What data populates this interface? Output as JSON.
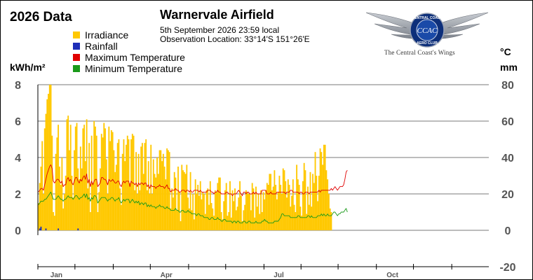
{
  "header": {
    "headline": "2026 Data",
    "station": "Warnervale Airfield",
    "obs_time": "5th September 2026  23:59 local",
    "obs_location": "Observation Location:   33°14'S 151°26'E"
  },
  "logo": {
    "ring_text_top": "CENTRAL COAST",
    "ring_text_bottom": "AERO CLUB",
    "monogram": "CCAC",
    "caption": "The Central Coast's Wings"
  },
  "units": {
    "left": "kWh/m²",
    "right_temp": "°C",
    "right_rain": "mm"
  },
  "colors": {
    "irradiance": "#FFC800",
    "rainfall": "#1E2EB8",
    "max_temp": "#E00000",
    "min_temp": "#1A9A1A",
    "grid": "#7a7a7a"
  },
  "legend": [
    {
      "label": "Irradiance",
      "color": "#FFC800"
    },
    {
      "label": "Rainfall",
      "color": "#1E2EB8"
    },
    {
      "label": "Maximum Temperature",
      "color": "#E00000"
    },
    {
      "label": "Minimum Temperature",
      "color": "#1A9A1A"
    }
  ],
  "chart_data": {
    "type": "bar",
    "left_axis": {
      "label": "kWh/m²",
      "ticks": [
        0,
        2,
        4,
        6,
        8
      ],
      "range": [
        0,
        8
      ]
    },
    "right_axis": {
      "labels": [
        "°C",
        "mm"
      ],
      "ticks": [
        -20,
        0,
        20,
        40,
        60,
        80
      ],
      "range": [
        -20,
        80
      ]
    },
    "x_axis": {
      "domain_days": [
        1,
        365
      ],
      "month_labels": [
        {
          "label": "Jan",
          "day": 16
        },
        {
          "label": "Apr",
          "day": 105
        },
        {
          "label": "Jul",
          "day": 196
        },
        {
          "label": "Oct",
          "day": 288
        }
      ]
    },
    "grid": true,
    "series": [
      {
        "name": "Irradiance",
        "axis": "left",
        "kind": "bar",
        "start_day": 1,
        "values": [
          1.5,
          2.6,
          3.5,
          4.9,
          2.0,
          5.6,
          6.4,
          7.2,
          7.5,
          8.0,
          8.0,
          5.2,
          1.0,
          0.8,
          4.2,
          5.1,
          5.8,
          3.5,
          2.5,
          4.0,
          1.2,
          2.0,
          3.0,
          6.1,
          6.3,
          4.4,
          5.8,
          3.0,
          1.8,
          4.4,
          5.7,
          5.9,
          3.4,
          2.8,
          4.6,
          3.4,
          5.6,
          5.8,
          3.8,
          6.1,
          2.3,
          4.8,
          1.0,
          5.2,
          2.6,
          6.0,
          5.7,
          5.2,
          1.0,
          2.1,
          3.4,
          5.3,
          5.1,
          5.9,
          5.6,
          3.9,
          2.0,
          5.7,
          4.9,
          5.5,
          5.4,
          4.4,
          3.2,
          3.6,
          4.8,
          5.0,
          2.3,
          1.4,
          4.2,
          5.0,
          3.8,
          4.7,
          5.2,
          5.0,
          2.6,
          5.0,
          5.3,
          5.2,
          2.2,
          4.3,
          2.0,
          4.2,
          2.2,
          4.6,
          4.8,
          3.1,
          4.8,
          5.0,
          2.2,
          3.8,
          2.0,
          4.7,
          2.0,
          3.9,
          3.1,
          2.9,
          4.0,
          3.1,
          4.4,
          4.4,
          3.8,
          4.2,
          3.5,
          2.8,
          4.5,
          4.4,
          4.3,
          1.2,
          2.3,
          1.8,
          3.2,
          2.9,
          1.1,
          3.5,
          2.1,
          0.5,
          3.6,
          3.3,
          3.2,
          3.1,
          3.6,
          1.8,
          1.2,
          3.2,
          1.1,
          2.0,
          0.6,
          2.8,
          2.0,
          2.5,
          1.9,
          2.7,
          1.7,
          2.1,
          2.0,
          0.9,
          2.2,
          2.3,
          1.4,
          2.7,
          1.5,
          1.2,
          0.8,
          2.2,
          2.1,
          2.6,
          2.9,
          2.9,
          1.0,
          0.6,
          1.6,
          2.2,
          2.6,
          0.8,
          1.0,
          2.7,
          0.7,
          2.2,
          1.6,
          2.3,
          1.1,
          1.3,
          1.8,
          2.7,
          1.9,
          0.5,
          1.1,
          1.4,
          2.2,
          2.1,
          2.0,
          2.0,
          1.1,
          2.6,
          2.3,
          0.7,
          2.4,
          1.3,
          2.0,
          0.9,
          2.2,
          1.0,
          2.1,
          1.7,
          2.2,
          2.6,
          2.5,
          3.1,
          3.1,
          2.2,
          2.4,
          3.3,
          2.5,
          1.7,
          2.1,
          3.0,
          2.5,
          2.0,
          3.4,
          3.3,
          2.7,
          1.8,
          2.8,
          2.5,
          1.3,
          1.9,
          2.8,
          1.4,
          1.0,
          3.6,
          2.8,
          2.5,
          1.3,
          0.8,
          2.7,
          3.7,
          3.3,
          0.9,
          2.4,
          1.4,
          3.2,
          1.3,
          3.1,
          2.6,
          4.3,
          3.0,
          1.6,
          3.0,
          4.5,
          4.3,
          3.6,
          4.7,
          4.7,
          3.3,
          2.8,
          2.0,
          1.2,
          1.0
        ]
      },
      {
        "name": "Rainfall",
        "axis": "right",
        "kind": "bar",
        "start_day": 1,
        "values": [
          0,
          1,
          2,
          0,
          0,
          0,
          1,
          0,
          0,
          0,
          0,
          0,
          0,
          0,
          0,
          0,
          1,
          0,
          0,
          0,
          0,
          0,
          0,
          0,
          0,
          0,
          0,
          0,
          0,
          0,
          0,
          0,
          1,
          0,
          0,
          0,
          0,
          0,
          0,
          0,
          0,
          0,
          0,
          0,
          0,
          0,
          0,
          0,
          0,
          0,
          0,
          0,
          0,
          0,
          0,
          0,
          0,
          0,
          0,
          0,
          0,
          0,
          0,
          0,
          0,
          0,
          0,
          0,
          0,
          0,
          0,
          0,
          0,
          0,
          0,
          0,
          0,
          0,
          0,
          0,
          0,
          0,
          0,
          0,
          0,
          0,
          0,
          0,
          0,
          0,
          0,
          0,
          0,
          0,
          0,
          0,
          0,
          0,
          0,
          0,
          0,
          0,
          0,
          0,
          0,
          0,
          0,
          0,
          0,
          0,
          0,
          0,
          0,
          0,
          0,
          0,
          0,
          0,
          0,
          0,
          0,
          0,
          0,
          0,
          0,
          0,
          0,
          0,
          0,
          0,
          0,
          0,
          0,
          0,
          0,
          0,
          0,
          0,
          0,
          0,
          0,
          0,
          0,
          0,
          0,
          0,
          0,
          0,
          0,
          0,
          0,
          0,
          0,
          0,
          0,
          0,
          0,
          0,
          0,
          0,
          0,
          0,
          0,
          0,
          0,
          0,
          0,
          0,
          0,
          0,
          0,
          0,
          0,
          0,
          0,
          0,
          0,
          0,
          0,
          0,
          0,
          0,
          0,
          0,
          0,
          0,
          0,
          0,
          0,
          0,
          0,
          0,
          0,
          0,
          0,
          0,
          0,
          0,
          0,
          0,
          0,
          0,
          0,
          0,
          0,
          0,
          0,
          0,
          0,
          0,
          0,
          0,
          0,
          0,
          0,
          0,
          0,
          0,
          0,
          0,
          0,
          0,
          0,
          0,
          0,
          0,
          0,
          0,
          0,
          0,
          0,
          0,
          0,
          0,
          0,
          0,
          0,
          0,
          0,
          0,
          0,
          0,
          0,
          0,
          0,
          0,
          0,
          0,
          0,
          0,
          0,
          0,
          0,
          0,
          0,
          0,
          0,
          0,
          0,
          0
        ]
      },
      {
        "name": "Maximum Temperature",
        "axis": "right",
        "kind": "line",
        "start_day": 1,
        "values": [
          21,
          22,
          23,
          23,
          22,
          25,
          28,
          31,
          33,
          35,
          36,
          34,
          27,
          26,
          27,
          28,
          28,
          27,
          26,
          27,
          24,
          25,
          25,
          28,
          29,
          27,
          28,
          26,
          25,
          27,
          29,
          29,
          27,
          26,
          28,
          27,
          29,
          30,
          28,
          31,
          26,
          28,
          24,
          27,
          25,
          27,
          28,
          28,
          24,
          25,
          26,
          29,
          29,
          28,
          28,
          27,
          25,
          28,
          27,
          27,
          28,
          27,
          26,
          26,
          27,
          27,
          25,
          24,
          26,
          27,
          26,
          27,
          27,
          27,
          24,
          27,
          26,
          26,
          25,
          26,
          24,
          26,
          25,
          26,
          26,
          25,
          26,
          26,
          24,
          25,
          23,
          25,
          24,
          24,
          24,
          23,
          24,
          24,
          25,
          24,
          24,
          24,
          23,
          24,
          25,
          23,
          23,
          21,
          22,
          22,
          22,
          23,
          22,
          22,
          21,
          21,
          22,
          22,
          22,
          21,
          22,
          22,
          21,
          22,
          21,
          21,
          22,
          22,
          22,
          22,
          21,
          22,
          21,
          21,
          21,
          21,
          21,
          22,
          22,
          22,
          21,
          21,
          20,
          21,
          21,
          22,
          21,
          21,
          20,
          20,
          20,
          20,
          21,
          21,
          20,
          20,
          20,
          19,
          20,
          20,
          20,
          21,
          22,
          21,
          20,
          19,
          21,
          21,
          20,
          21,
          21,
          20,
          20,
          20,
          21,
          20,
          21,
          20,
          20,
          20,
          20,
          22,
          22,
          22,
          22,
          20,
          20,
          20,
          21,
          20,
          20,
          20,
          20,
          21,
          21,
          21,
          21,
          21,
          21,
          21,
          20,
          21,
          21,
          21,
          22,
          22,
          21,
          21,
          21,
          21,
          21,
          20,
          21,
          21,
          20,
          20,
          21,
          21,
          21,
          20,
          21,
          21,
          21,
          21,
          21,
          21,
          21,
          22,
          21,
          22,
          22,
          22,
          22,
          22,
          22,
          22,
          22,
          23,
          22,
          23,
          24,
          23,
          22,
          23,
          24,
          24,
          24,
          25,
          28,
          32,
          33
        ]
      },
      {
        "name": "Minimum Temperature",
        "axis": "right",
        "kind": "line",
        "start_day": 1,
        "values": [
          14,
          15,
          16,
          16,
          16,
          17,
          17,
          18,
          19,
          20,
          21,
          19,
          17,
          17,
          17,
          18,
          19,
          18,
          17,
          17,
          16,
          17,
          17,
          18,
          19,
          18,
          18,
          18,
          17,
          18,
          19,
          19,
          18,
          17,
          18,
          18,
          19,
          20,
          18,
          20,
          17,
          18,
          16,
          18,
          17,
          19,
          19,
          18,
          15,
          16,
          17,
          18,
          18,
          18,
          18,
          17,
          16,
          17,
          17,
          18,
          18,
          17,
          16,
          17,
          17,
          18,
          16,
          15,
          16,
          17,
          16,
          17,
          17,
          17,
          15,
          16,
          17,
          16,
          15,
          16,
          15,
          16,
          14,
          15,
          15,
          14,
          15,
          15,
          13,
          14,
          13,
          14,
          13,
          13,
          13,
          12,
          13,
          13,
          14,
          13,
          13,
          13,
          12,
          12,
          13,
          12,
          12,
          11,
          11,
          11,
          11,
          12,
          11,
          11,
          10,
          10,
          11,
          11,
          10,
          10,
          10,
          11,
          10,
          10,
          9,
          9,
          9,
          9,
          8,
          9,
          9,
          8,
          8,
          8,
          7,
          7,
          7,
          7,
          6,
          6,
          7,
          7,
          6,
          6,
          6,
          7,
          6,
          6,
          5,
          5,
          6,
          6,
          5,
          5,
          5,
          5,
          5,
          4,
          5,
          5,
          4,
          5,
          5,
          4,
          4,
          4,
          5,
          5,
          4,
          4,
          5,
          5,
          4,
          4,
          4,
          4,
          5,
          4,
          4,
          4,
          4,
          5,
          5,
          6,
          5,
          5,
          4,
          4,
          4,
          4,
          4,
          5,
          5,
          5,
          5,
          6,
          7,
          9,
          9,
          8,
          8,
          8,
          8,
          8,
          7,
          7,
          7,
          7,
          7,
          7,
          8,
          8,
          7,
          7,
          7,
          7,
          7,
          7,
          8,
          8,
          7,
          8,
          7,
          7,
          7,
          7,
          8,
          8,
          8,
          9,
          8,
          9,
          8,
          8,
          9,
          8,
          8,
          8,
          9,
          10,
          10,
          9,
          8,
          9,
          9,
          10,
          10,
          10,
          11,
          12,
          10
        ]
      }
    ]
  }
}
